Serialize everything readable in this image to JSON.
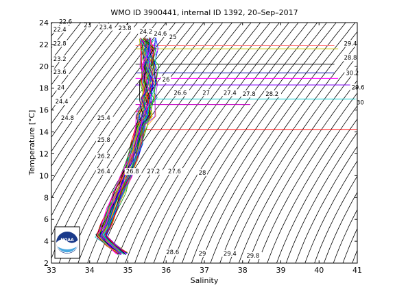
{
  "chart_data": {
    "type": "line",
    "title": "WMO ID 3900441, internal ID 1392, 20–Sep–2017",
    "xlabel": "Salinity",
    "ylabel": "Temperature [°C]",
    "xlim": [
      33,
      41
    ],
    "ylim": [
      2,
      24
    ],
    "xticks": [
      33,
      34,
      35,
      36,
      37,
      38,
      39,
      40,
      41
    ],
    "yticks": [
      2,
      4,
      6,
      8,
      10,
      12,
      14,
      16,
      18,
      20,
      22,
      24
    ],
    "grid": false,
    "legend": "none",
    "density_contours": {
      "step": 0.2,
      "labels": [
        {
          "text": "22.6",
          "s": 33.2,
          "t": 23.9
        },
        {
          "text": "23",
          "s": 33.85,
          "t": 23.6
        },
        {
          "text": "23.4",
          "s": 34.25,
          "t": 23.4
        },
        {
          "text": "23.8",
          "s": 34.75,
          "t": 23.3
        },
        {
          "text": "24.2",
          "s": 35.3,
          "t": 23.0
        },
        {
          "text": "24.6",
          "s": 35.68,
          "t": 22.8
        },
        {
          "text": "25",
          "s": 36.08,
          "t": 22.5
        },
        {
          "text": "22.4",
          "s": 33.05,
          "t": 23.2
        },
        {
          "text": "22.8",
          "s": 33.05,
          "t": 21.9
        },
        {
          "text": "23.2",
          "s": 33.05,
          "t": 20.5
        },
        {
          "text": "23.6",
          "s": 33.05,
          "t": 19.3
        },
        {
          "text": "24",
          "s": 33.15,
          "t": 17.9
        },
        {
          "text": "24.4",
          "s": 33.1,
          "t": 16.6
        },
        {
          "text": "24.8",
          "s": 33.25,
          "t": 15.1
        },
        {
          "text": "25.4",
          "s": 34.2,
          "t": 15.1
        },
        {
          "text": "25.8",
          "s": 34.2,
          "t": 13.1
        },
        {
          "text": "26.2",
          "s": 34.2,
          "t": 11.6
        },
        {
          "text": "26.4",
          "s": 34.2,
          "t": 10.2
        },
        {
          "text": "26.8",
          "s": 34.95,
          "t": 10.2
        },
        {
          "text": "27.2",
          "s": 35.5,
          "t": 10.2
        },
        {
          "text": "27.6",
          "s": 36.05,
          "t": 10.2
        },
        {
          "text": "28",
          "s": 36.85,
          "t": 10.1
        },
        {
          "text": "26.6",
          "s": 36.2,
          "t": 17.4
        },
        {
          "text": "27",
          "s": 36.95,
          "t": 17.4
        },
        {
          "text": "27.4",
          "s": 37.5,
          "t": 17.4
        },
        {
          "text": "27.8",
          "s": 38.0,
          "t": 17.3
        },
        {
          "text": "28.2",
          "s": 38.6,
          "t": 17.3
        },
        {
          "text": "28.6",
          "s": 36.0,
          "t": 2.8
        },
        {
          "text": "29",
          "s": 36.85,
          "t": 2.7
        },
        {
          "text": "29.4",
          "s": 37.5,
          "t": 2.7
        },
        {
          "text": "29.8",
          "s": 38.1,
          "t": 2.5
        },
        {
          "text": "26",
          "s": 35.9,
          "t": 18.6
        },
        {
          "text": "29.4",
          "s": 40.65,
          "t": 21.9
        },
        {
          "text": "28.8",
          "s": 40.65,
          "t": 20.6
        },
        {
          "text": "30.2",
          "s": 40.7,
          "t": 19.2
        },
        {
          "text": "29.6",
          "s": 40.85,
          "t": 17.9
        },
        {
          "text": "30",
          "s": 41.1,
          "t": 16.5
        }
      ]
    },
    "mixed_layer_lines": [
      {
        "t": 21.6,
        "s_end": 40.5,
        "color": "#c8c800"
      },
      {
        "t": 20.2,
        "s_end": 40.4,
        "color": "#000000"
      },
      {
        "t": 18.9,
        "s_end": 40.5,
        "color": "#ff00ff"
      },
      {
        "t": 18.3,
        "s_end": 41.0,
        "color": "#8000ff"
      },
      {
        "t": 17.0,
        "s_end": 41.0,
        "color": "#00cccc"
      },
      {
        "t": 16.5,
        "s_end": 38.2,
        "color": "#c000c0"
      },
      {
        "t": 14.2,
        "s_end": 41.0,
        "color": "#ff0000"
      },
      {
        "t": 15.9,
        "s_end": 35.4,
        "color": "#ff0000"
      },
      {
        "t": 21.9,
        "s_end": 40.4,
        "color": "#ff8080"
      },
      {
        "t": 19.4,
        "s_end": 40.4,
        "color": "#0000aa"
      }
    ],
    "profile_colors": [
      "#ff0000",
      "#00aa00",
      "#0000ff",
      "#ff00ff",
      "#00cccc",
      "#cccc00",
      "#000000",
      "#ff8800",
      "#8800ff",
      "#008888"
    ],
    "profile_core": [
      {
        "t": 2.9,
        "s": 34.85
      },
      {
        "t": 3.5,
        "s": 34.6
      },
      {
        "t": 4.5,
        "s": 34.3
      },
      {
        "t": 5.5,
        "s": 34.45
      },
      {
        "t": 7.0,
        "s": 34.6
      },
      {
        "t": 8.5,
        "s": 34.78
      },
      {
        "t": 10.0,
        "s": 34.97
      },
      {
        "t": 11.5,
        "s": 35.12
      },
      {
        "t": 13.0,
        "s": 35.25
      },
      {
        "t": 14.5,
        "s": 35.35
      },
      {
        "t": 15.5,
        "s": 35.45
      },
      {
        "t": 17.0,
        "s": 35.5
      },
      {
        "t": 18.5,
        "s": 35.55
      },
      {
        "t": 20.0,
        "s": 35.55
      },
      {
        "t": 21.5,
        "s": 35.55
      },
      {
        "t": 22.5,
        "s": 35.5
      }
    ],
    "profile_count": 55
  },
  "logo": {
    "name": "noaa-logo",
    "text": "NOAA"
  }
}
